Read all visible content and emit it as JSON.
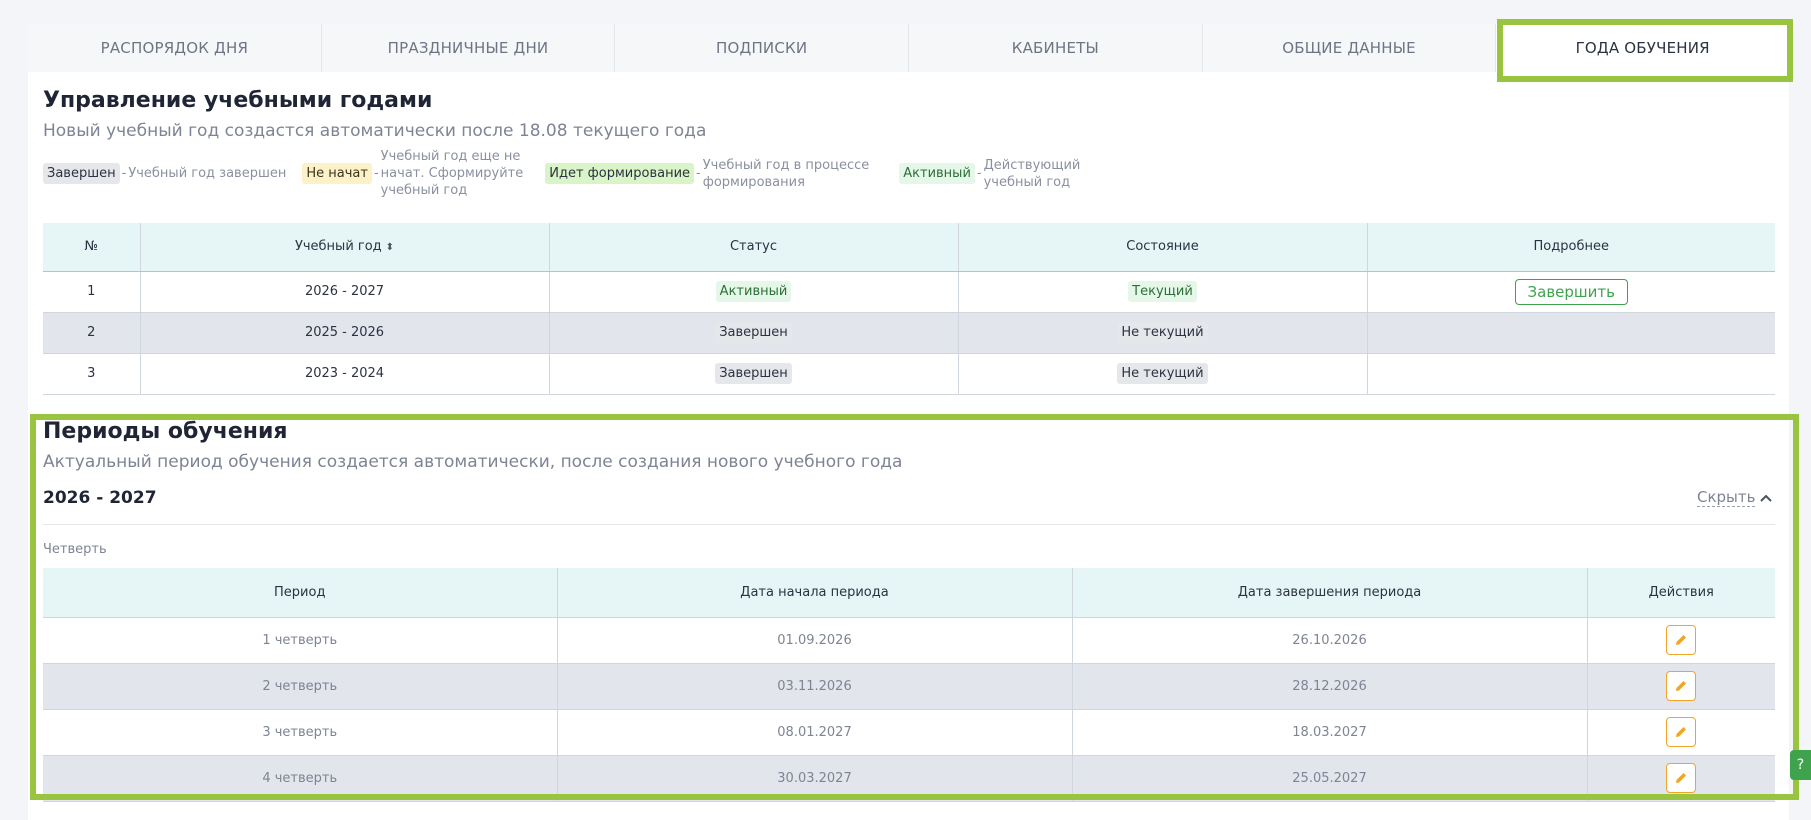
{
  "tabs": [
    {
      "label": "РАСПОРЯДОК ДНЯ",
      "active": false
    },
    {
      "label": "ПРАЗДНИЧНЫЕ ДНИ",
      "active": false
    },
    {
      "label": "ПОДПИСКИ",
      "active": false
    },
    {
      "label": "КАБИНЕТЫ",
      "active": false
    },
    {
      "label": "ОБЩИЕ ДАННЫЕ",
      "active": false
    },
    {
      "label": "ГОДА ОБУЧЕНИЯ",
      "active": true
    }
  ],
  "years_section": {
    "title": "Управление учебными годами",
    "subtitle": "Новый учебный год создастся автоматически после 18.08 текущего года"
  },
  "legend": {
    "done": {
      "badge": "Завершен",
      "dash": "-",
      "desc": "Учебный год завершен"
    },
    "notstarted": {
      "badge": "Не начат",
      "dash": "-",
      "desc_line1": "Учебный год еще не",
      "desc_line2": "начат. Сформируйте",
      "desc_line3": "учебный год"
    },
    "forming": {
      "badge": "Идет формирование",
      "dash": "-",
      "desc_line1": "Учебный год в процессе",
      "desc_line2": "формирования"
    },
    "active": {
      "badge": "Активный",
      "dash": "-",
      "desc_line1": "Действующий",
      "desc_line2": "учебный год"
    }
  },
  "years_table": {
    "headers": {
      "num": "№",
      "year": "Учебный год",
      "status": "Статус",
      "state": "Состояние",
      "more": "Подробнее"
    },
    "rows": [
      {
        "num": "1",
        "year": "2026 - 2027",
        "status": "Активный",
        "state": "Текущий",
        "action": "Завершить"
      },
      {
        "num": "2",
        "year": "2025 - 2026",
        "status": "Завершен",
        "state": "Не текущий",
        "action": ""
      },
      {
        "num": "3",
        "year": "2023 - 2024",
        "status": "Завершен",
        "state": "Не текущий",
        "action": ""
      }
    ]
  },
  "periods_section": {
    "title": "Периоды обучения",
    "subtitle": "Актуальный период обучения создается автоматически, после создания нового учебного года",
    "year_label": "2026 - 2027",
    "hide_label": "Скрыть",
    "period_type": "Четверть"
  },
  "periods_table": {
    "headers": {
      "period": "Период",
      "start": "Дата начала периода",
      "end": "Дата завершения периода",
      "actions": "Действия"
    },
    "rows": [
      {
        "period": "1 четверть",
        "start": "01.09.2026",
        "end": "26.10.2026"
      },
      {
        "period": "2 четверть",
        "start": "03.11.2026",
        "end": "28.12.2026"
      },
      {
        "period": "3 четверть",
        "start": "08.01.2027",
        "end": "18.03.2027"
      },
      {
        "period": "4 четверть",
        "start": "30.03.2027",
        "end": "25.05.2027"
      }
    ]
  },
  "help_label": "?",
  "colors": {
    "highlight": "#99c440",
    "accent_green": "#3fa34d",
    "edit_orange": "#f0a52a",
    "table_header_bg": "#e6f6f6"
  }
}
